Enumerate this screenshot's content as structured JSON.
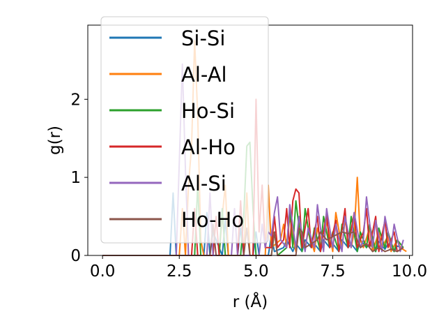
{
  "chart_data": {
    "type": "line",
    "title": "",
    "xlabel": "r (Å)",
    "ylabel": "g(r)",
    "xlim": [
      -0.48,
      10.1
    ],
    "ylim": [
      0,
      2.95
    ],
    "x_ticks": [
      {
        "value": 0.0,
        "label": "0.0"
      },
      {
        "value": 2.5,
        "label": "2.5"
      },
      {
        "value": 5.0,
        "label": "5.0"
      },
      {
        "value": 7.5,
        "label": "7.5"
      },
      {
        "value": 10.0,
        "label": "10.0"
      }
    ],
    "y_ticks": [
      {
        "value": 0,
        "label": "0"
      },
      {
        "value": 1,
        "label": "1"
      },
      {
        "value": 2,
        "label": "2"
      }
    ],
    "grid": false,
    "legend_position": "upper-left",
    "series": [
      {
        "name": "Si-Si",
        "color": "#1f77b4",
        "x": [
          0.0,
          2.2,
          2.3,
          2.4,
          3.3,
          3.4,
          3.5,
          3.6,
          3.9,
          4.0,
          4.1,
          4.4,
          4.5,
          4.6,
          4.9,
          5.0,
          5.1,
          5.4,
          5.5,
          5.6,
          5.9,
          6.0,
          6.2,
          6.3,
          6.5,
          6.6,
          6.8,
          6.9,
          7.1,
          7.2,
          7.4,
          7.5,
          7.7,
          7.8,
          8.0,
          8.1,
          8.3,
          8.4,
          8.6,
          8.7,
          8.9,
          9.0,
          9.2,
          9.3,
          9.5,
          9.6,
          9.8
        ],
        "values": [
          0,
          0,
          0.8,
          0,
          0,
          0.55,
          0,
          0.3,
          0,
          0.45,
          0,
          0,
          0.35,
          0,
          0,
          0.3,
          0,
          0,
          0.25,
          0.05,
          0.1,
          0.2,
          0.05,
          0.15,
          0.05,
          0.2,
          0.1,
          0.15,
          0.05,
          0.2,
          0.1,
          0.15,
          0.05,
          0.2,
          0.1,
          0.15,
          0.05,
          0.2,
          0.1,
          0.15,
          0.05,
          0.18,
          0.08,
          0.15,
          0.05,
          0.12,
          0.1
        ]
      },
      {
        "name": "Al-Al",
        "color": "#ff7f0e",
        "x": [
          0.0,
          2.5,
          2.6,
          2.7,
          2.8,
          2.9,
          3.0,
          3.1,
          3.2,
          3.3,
          3.8,
          3.9,
          4.0,
          4.1,
          4.6,
          4.7,
          4.8,
          5.3,
          5.4,
          5.5,
          5.8,
          5.9,
          6.0,
          6.1,
          6.3,
          6.4,
          6.6,
          6.7,
          6.9,
          7.0,
          7.2,
          7.3,
          7.5,
          7.6,
          7.8,
          7.9,
          8.1,
          8.2,
          8.3,
          8.4,
          8.5,
          8.7,
          8.8,
          9.0,
          9.1,
          9.3,
          9.4,
          9.6,
          9.7,
          9.9
        ],
        "values": [
          0,
          0,
          0.6,
          0,
          0.9,
          1.4,
          2.75,
          1.8,
          0.2,
          0,
          0,
          0.5,
          0.9,
          0,
          0,
          0.8,
          0,
          0,
          0.9,
          0.1,
          0.2,
          0.4,
          0.1,
          0.5,
          0.05,
          0.45,
          0.1,
          0.3,
          0.05,
          0.35,
          0.1,
          0.45,
          0.05,
          0.55,
          0.1,
          0.45,
          0.1,
          0.3,
          1.0,
          0.2,
          0.1,
          0.35,
          0.05,
          0.3,
          0.1,
          0.25,
          0.05,
          0.2,
          0.1,
          0.05
        ]
      },
      {
        "name": "Ho-Si",
        "color": "#2ca02c",
        "x": [
          0.0,
          3.0,
          3.1,
          3.2,
          3.8,
          3.9,
          4.0,
          4.5,
          4.6,
          4.7,
          4.8,
          4.9,
          5.0,
          5.5,
          5.6,
          5.7,
          6.0,
          6.1,
          6.2,
          6.3,
          6.5,
          6.6,
          6.8,
          6.9,
          7.1,
          7.2,
          7.4,
          7.5,
          7.7,
          7.8,
          8.0,
          8.1,
          8.3,
          8.4,
          8.6,
          8.7,
          8.9,
          9.0,
          9.2,
          9.3,
          9.5,
          9.6,
          9.8
        ],
        "values": [
          0,
          0,
          0.9,
          0,
          0,
          0.6,
          0,
          0,
          0.5,
          1.4,
          1.45,
          0.6,
          0,
          0,
          0.3,
          0,
          0.1,
          0.6,
          0.1,
          0.7,
          0.05,
          0.6,
          0.1,
          0.35,
          0.05,
          0.5,
          0.1,
          0.3,
          0.05,
          0.4,
          0.1,
          0.5,
          0.05,
          0.3,
          0.1,
          0.4,
          0.05,
          0.35,
          0.1,
          0.3,
          0.05,
          0.2,
          0.1
        ]
      },
      {
        "name": "Al-Ho",
        "color": "#d62728",
        "x": [
          0.0,
          2.9,
          3.0,
          3.1,
          3.6,
          3.7,
          3.8,
          4.4,
          4.5,
          4.6,
          4.9,
          5.0,
          5.1,
          5.2,
          5.3,
          5.5,
          5.6,
          5.7,
          5.9,
          6.0,
          6.1,
          6.2,
          6.3,
          6.4,
          6.5,
          6.7,
          6.8,
          7.0,
          7.1,
          7.3,
          7.4,
          7.6,
          7.7,
          7.9,
          8.0,
          8.2,
          8.3,
          8.5,
          8.6,
          8.7,
          8.9,
          9.0,
          9.2,
          9.3,
          9.5,
          9.6,
          9.8
        ],
        "values": [
          0,
          0,
          0.6,
          0,
          0,
          0.5,
          0,
          0,
          0.7,
          0,
          0,
          2.0,
          0.3,
          0.9,
          0.1,
          0.1,
          0.5,
          0.1,
          0.2,
          0.6,
          0.1,
          0.7,
          0.85,
          0.8,
          0.1,
          0.6,
          0.1,
          0.5,
          0.05,
          0.55,
          0.1,
          0.45,
          0.05,
          0.6,
          0.1,
          0.55,
          0.1,
          0.3,
          0.6,
          0.1,
          0.5,
          0.05,
          0.45,
          0.1,
          0.3,
          0.05,
          0.1
        ]
      },
      {
        "name": "Al-Si",
        "color": "#9467bd",
        "x": [
          0.0,
          2.4,
          2.5,
          2.6,
          2.7,
          2.8,
          3.4,
          3.5,
          3.6,
          4.2,
          4.3,
          4.4,
          5.1,
          5.2,
          5.3,
          5.4,
          5.5,
          5.6,
          5.7,
          5.8,
          6.0,
          6.1,
          6.3,
          6.4,
          6.6,
          6.7,
          6.9,
          7.0,
          7.2,
          7.3,
          7.5,
          7.6,
          7.8,
          7.9,
          8.1,
          8.2,
          8.4,
          8.5,
          8.6,
          8.8,
          8.9,
          9.1,
          9.2,
          9.4,
          9.5,
          9.7,
          9.8
        ],
        "values": [
          0,
          0,
          1.2,
          2.45,
          1.1,
          0,
          0,
          0.8,
          0,
          0,
          0.6,
          0,
          0,
          0.4,
          0.1,
          0.3,
          0.25,
          0.55,
          0.75,
          0.2,
          0.1,
          0.65,
          0.1,
          0.5,
          0.05,
          0.35,
          0.1,
          0.65,
          0.05,
          0.6,
          0.1,
          0.4,
          0.05,
          0.5,
          0.1,
          0.55,
          0.1,
          0.2,
          0.75,
          0.1,
          0.45,
          0.05,
          0.5,
          0.1,
          0.4,
          0.05,
          0.2
        ]
      },
      {
        "name": "Ho-Ho",
        "color": "#8c564b",
        "x": [
          0.0,
          3.5,
          3.6,
          3.7,
          4.6,
          4.7,
          4.8,
          5.5,
          5.6,
          5.7,
          6.3,
          6.4,
          6.5,
          6.6,
          7.0,
          7.1,
          7.2,
          7.3,
          7.8,
          8.0,
          8.2,
          8.4,
          8.6,
          8.8,
          9.0,
          9.2,
          9.4,
          9.6,
          9.8
        ],
        "values": [
          0,
          0,
          0.4,
          0,
          0,
          0.35,
          0,
          0,
          0.3,
          0,
          0,
          0.35,
          0.3,
          0.1,
          0.2,
          0.3,
          0.25,
          0.2,
          0.3,
          0.28,
          0.3,
          0.1,
          0.15,
          0.05,
          0.1,
          0.05,
          0.08,
          0.05,
          0.1
        ]
      }
    ]
  }
}
